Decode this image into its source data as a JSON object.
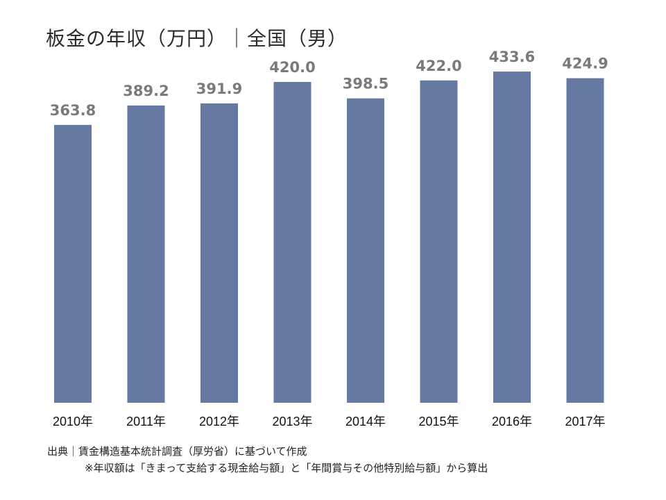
{
  "title": "板金の年収（万円）｜全国（男）",
  "source": {
    "line1": "出典｜賃金構造基本統計調査（厚労省）に基づいて作成",
    "line2": "※年収額は「きまって支給する現金給与額」と「年間賞与その他特別給与額」から算出"
  },
  "chart_data": {
    "type": "bar",
    "title": "板金の年収（万円）｜全国（男）",
    "categories": [
      "2010年",
      "2011年",
      "2012年",
      "2013年",
      "2014年",
      "2015年",
      "2016年",
      "2017年"
    ],
    "values": [
      363.8,
      389.2,
      391.9,
      420.0,
      398.5,
      422.0,
      433.6,
      424.9
    ],
    "value_labels": [
      "363.8",
      "389.2",
      "391.9",
      "420.0",
      "398.5",
      "422.0",
      "433.6",
      "424.9"
    ],
    "xlabel": "",
    "ylabel": "",
    "ylim": [
      0,
      500
    ],
    "grid": false,
    "legend": "none",
    "bar_color": "#6679a2",
    "label_color": "#7a7a7a"
  }
}
